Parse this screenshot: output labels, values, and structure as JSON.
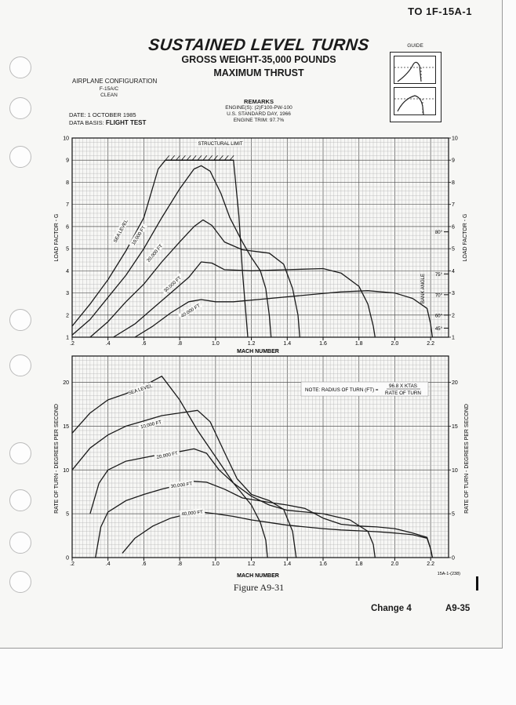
{
  "header": {
    "tech_order": "TO 1F-15A-1"
  },
  "title": {
    "main": "SUSTAINED LEVEL TURNS",
    "line2": "GROSS WEIGHT-35,000 POUNDS",
    "line3": "MAXIMUM THRUST"
  },
  "configuration": {
    "heading": "AIRPLANE CONFIGURATION",
    "aircraft": "F-15A/C",
    "config": "CLEAN"
  },
  "date_info": {
    "date": "DATE: 1 OCTOBER 1985",
    "basis_prefix": "DATA BASIS:",
    "basis_value": "FLIGHT TEST"
  },
  "remarks": {
    "heading": "REMARKS",
    "engines": "ENGINE(S): (2)F100-PW-100",
    "atmosphere": "U.S. STANDARD DAY, 1966",
    "trim": "ENGINE TRIM: 97.7%"
  },
  "guide": {
    "title": "GUIDE"
  },
  "structural_limit": "STRUCTURAL LIMIT",
  "note": {
    "prefix": "NOTE:  RADIUS OF TURN (FT) =",
    "numerator": "96.8 X KTAS",
    "denominator": "RATE OF TURN"
  },
  "figure_label": "Figure A9-31",
  "drawing_id": "15A-1-(238)",
  "footer": {
    "change": "Change 4",
    "page": "A9-35"
  },
  "chart_data": [
    {
      "type": "line",
      "title": "",
      "xlabel": "MACH NUMBER",
      "ylabel": "LOAD FACTOR - G",
      "xlim": [
        0.2,
        2.3
      ],
      "ylim": [
        1,
        10
      ],
      "x_ticks": [
        ".2",
        ".4",
        ".6",
        ".8",
        "1.0",
        "1.2",
        "1.4",
        "1.6",
        "1.8",
        "2.0",
        "2.2"
      ],
      "x_tick_values": [
        0.2,
        0.4,
        0.6,
        0.8,
        1.0,
        1.2,
        1.4,
        1.6,
        1.8,
        2.0,
        2.2
      ],
      "y_ticks": [
        1,
        2,
        3,
        4,
        5,
        6,
        7,
        8,
        9,
        10
      ],
      "grid": true,
      "bank_angle_label": "BANK ANGLE",
      "bank_angles": [
        {
          "label": "80°",
          "g": 5.76
        },
        {
          "label": "75°",
          "g": 3.86
        },
        {
          "label": "70°",
          "g": 2.92
        },
        {
          "label": "60°",
          "g": 2.0
        },
        {
          "label": "45°",
          "g": 1.41
        }
      ],
      "series": [
        {
          "name": "SEA LEVEL",
          "points": [
            [
              0.2,
              1.5
            ],
            [
              0.3,
              2.5
            ],
            [
              0.4,
              3.6
            ],
            [
              0.5,
              4.9
            ],
            [
              0.6,
              6.4
            ],
            [
              0.68,
              8.6
            ],
            [
              0.72,
              9.0
            ],
            [
              1.1,
              9.0
            ],
            [
              1.13,
              6.5
            ],
            [
              1.15,
              4.0
            ],
            [
              1.17,
              2.0
            ],
            [
              1.18,
              1.0
            ]
          ]
        },
        {
          "name": "10,000 FT",
          "points": [
            [
              0.2,
              1.1
            ],
            [
              0.3,
              1.8
            ],
            [
              0.4,
              2.8
            ],
            [
              0.5,
              3.8
            ],
            [
              0.6,
              5.0
            ],
            [
              0.7,
              6.4
            ],
            [
              0.8,
              7.7
            ],
            [
              0.88,
              8.6
            ],
            [
              0.92,
              8.75
            ],
            [
              0.97,
              8.5
            ],
            [
              1.03,
              7.5
            ],
            [
              1.08,
              6.4
            ],
            [
              1.15,
              5.3
            ],
            [
              1.2,
              4.6
            ],
            [
              1.25,
              4.0
            ],
            [
              1.28,
              3.2
            ],
            [
              1.3,
              2.0
            ],
            [
              1.31,
              1.0
            ]
          ]
        },
        {
          "name": "20,000 FT",
          "points": [
            [
              0.3,
              1.0
            ],
            [
              0.4,
              1.7
            ],
            [
              0.5,
              2.6
            ],
            [
              0.6,
              3.4
            ],
            [
              0.7,
              4.4
            ],
            [
              0.8,
              5.3
            ],
            [
              0.88,
              6.0
            ],
            [
              0.93,
              6.3
            ],
            [
              0.98,
              6.05
            ],
            [
              1.05,
              5.3
            ],
            [
              1.15,
              4.95
            ],
            [
              1.3,
              4.8
            ],
            [
              1.38,
              4.3
            ],
            [
              1.43,
              3.2
            ],
            [
              1.46,
              2.0
            ],
            [
              1.47,
              1.0
            ]
          ]
        },
        {
          "name": "30,000 FT",
          "points": [
            [
              0.43,
              1.0
            ],
            [
              0.55,
              1.6
            ],
            [
              0.65,
              2.3
            ],
            [
              0.75,
              3.0
            ],
            [
              0.85,
              3.7
            ],
            [
              0.92,
              4.4
            ],
            [
              0.98,
              4.35
            ],
            [
              1.05,
              4.05
            ],
            [
              1.2,
              4.0
            ],
            [
              1.4,
              4.05
            ],
            [
              1.6,
              4.1
            ],
            [
              1.7,
              3.9
            ],
            [
              1.8,
              3.3
            ],
            [
              1.85,
              2.5
            ],
            [
              1.88,
              1.5
            ],
            [
              1.89,
              1.0
            ]
          ]
        },
        {
          "name": "40,000 FT",
          "points": [
            [
              0.55,
              1.0
            ],
            [
              0.65,
              1.5
            ],
            [
              0.75,
              2.1
            ],
            [
              0.85,
              2.6
            ],
            [
              0.92,
              2.7
            ],
            [
              1.0,
              2.6
            ],
            [
              1.1,
              2.6
            ],
            [
              1.3,
              2.75
            ],
            [
              1.5,
              2.9
            ],
            [
              1.7,
              3.05
            ],
            [
              1.85,
              3.1
            ],
            [
              2.0,
              3.0
            ],
            [
              2.1,
              2.75
            ],
            [
              2.18,
              2.3
            ],
            [
              2.2,
              1.6
            ],
            [
              2.21,
              1.0
            ]
          ]
        }
      ]
    },
    {
      "type": "line",
      "title": "",
      "xlabel": "MACH NUMBER",
      "ylabel": "RATE OF TURN - DEGREES PER SECOND",
      "xlim": [
        0.2,
        2.3
      ],
      "ylim": [
        0,
        23
      ],
      "x_ticks": [
        ".2",
        ".4",
        ".6",
        ".8",
        "1.0",
        "1.2",
        "1.4",
        "1.6",
        "1.8",
        "2.0",
        "2.2"
      ],
      "x_tick_values": [
        0.2,
        0.4,
        0.6,
        0.8,
        1.0,
        1.2,
        1.4,
        1.6,
        1.8,
        2.0,
        2.2
      ],
      "y_ticks": [
        0,
        5,
        10,
        15,
        20
      ],
      "grid": true,
      "series": [
        {
          "name": "SEA LEVEL",
          "points": [
            [
              0.2,
              14.2
            ],
            [
              0.3,
              16.5
            ],
            [
              0.4,
              18.0
            ],
            [
              0.5,
              18.7
            ],
            [
              0.6,
              19.6
            ],
            [
              0.7,
              20.7
            ],
            [
              0.8,
              18.0
            ],
            [
              0.9,
              14.5
            ],
            [
              1.0,
              11.5
            ],
            [
              1.1,
              8.5
            ],
            [
              1.2,
              6.0
            ],
            [
              1.25,
              4.0
            ],
            [
              1.28,
              2.0
            ],
            [
              1.29,
              0.0
            ]
          ]
        },
        {
          "name": "10,000 FT",
          "points": [
            [
              0.2,
              10.0
            ],
            [
              0.3,
              12.5
            ],
            [
              0.4,
              14.0
            ],
            [
              0.5,
              15.0
            ],
            [
              0.6,
              15.6
            ],
            [
              0.7,
              16.2
            ],
            [
              0.8,
              16.5
            ],
            [
              0.9,
              16.8
            ],
            [
              0.97,
              15.5
            ],
            [
              1.05,
              12.0
            ],
            [
              1.12,
              9.0
            ],
            [
              1.2,
              7.2
            ],
            [
              1.3,
              6.5
            ],
            [
              1.38,
              5.5
            ],
            [
              1.43,
              3.0
            ],
            [
              1.45,
              0.0
            ]
          ]
        },
        {
          "name": "20,000 FT",
          "points": [
            [
              0.3,
              5.0
            ],
            [
              0.35,
              8.5
            ],
            [
              0.4,
              10.0
            ],
            [
              0.5,
              11.0
            ],
            [
              0.6,
              11.4
            ],
            [
              0.7,
              11.8
            ],
            [
              0.8,
              12.1
            ],
            [
              0.88,
              12.4
            ],
            [
              0.95,
              11.9
            ],
            [
              1.02,
              10.0
            ],
            [
              1.1,
              8.5
            ],
            [
              1.2,
              7.0
            ],
            [
              1.3,
              6.0
            ],
            [
              1.4,
              5.4
            ],
            [
              1.5,
              5.2
            ],
            [
              1.6,
              5.0
            ],
            [
              1.75,
              4.3
            ],
            [
              1.85,
              3.0
            ],
            [
              1.88,
              1.5
            ],
            [
              1.89,
              0.0
            ]
          ]
        },
        {
          "name": "30,000 FT",
          "points": [
            [
              0.33,
              0.0
            ],
            [
              0.36,
              3.5
            ],
            [
              0.4,
              5.2
            ],
            [
              0.5,
              6.5
            ],
            [
              0.6,
              7.2
            ],
            [
              0.7,
              7.8
            ],
            [
              0.8,
              8.3
            ],
            [
              0.88,
              8.7
            ],
            [
              0.95,
              8.6
            ],
            [
              1.05,
              7.8
            ],
            [
              1.15,
              6.8
            ],
            [
              1.3,
              6.3
            ],
            [
              1.4,
              6.0
            ],
            [
              1.5,
              5.6
            ],
            [
              1.6,
              4.5
            ],
            [
              1.7,
              3.8
            ],
            [
              1.8,
              3.6
            ],
            [
              1.9,
              3.5
            ],
            [
              2.0,
              3.3
            ],
            [
              2.1,
              2.8
            ],
            [
              2.18,
              2.3
            ],
            [
              2.2,
              1.0
            ],
            [
              2.21,
              0.0
            ]
          ]
        },
        {
          "name": "40,000 FT",
          "points": [
            [
              0.48,
              0.5
            ],
            [
              0.55,
              2.2
            ],
            [
              0.65,
              3.6
            ],
            [
              0.75,
              4.5
            ],
            [
              0.85,
              5.0
            ],
            [
              0.92,
              5.2
            ],
            [
              1.0,
              5.0
            ],
            [
              1.1,
              4.7
            ],
            [
              1.2,
              4.3
            ],
            [
              1.3,
              4.0
            ],
            [
              1.4,
              3.7
            ],
            [
              1.5,
              3.5
            ],
            [
              1.6,
              3.3
            ],
            [
              1.7,
              3.15
            ],
            [
              1.8,
              3.05
            ],
            [
              1.9,
              2.95
            ],
            [
              2.0,
              2.8
            ],
            [
              2.1,
              2.6
            ],
            [
              2.18,
              2.2
            ],
            [
              2.2,
              1.0
            ],
            [
              2.21,
              0.0
            ]
          ]
        }
      ]
    }
  ]
}
